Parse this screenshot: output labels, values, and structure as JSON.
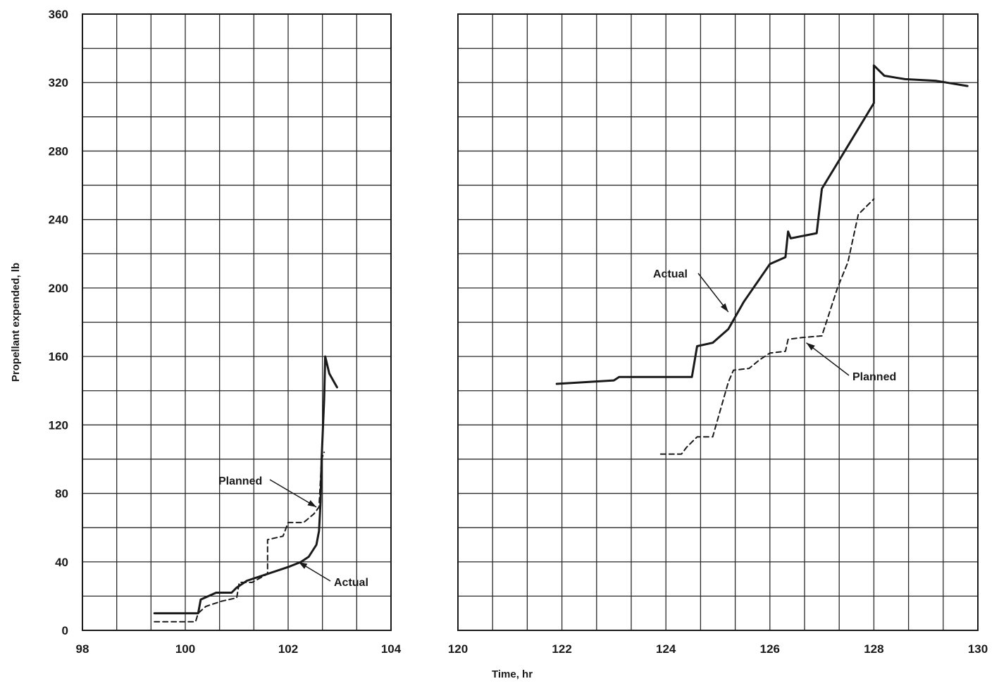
{
  "chart_data": [
    {
      "type": "line",
      "panel": "left",
      "xlim": [
        98,
        104
      ],
      "ylim": [
        0,
        360
      ],
      "x_ticks": [
        "98",
        "100",
        "102",
        "104"
      ],
      "y_ticks": [
        "0",
        "40",
        "80",
        "120",
        "160",
        "200",
        "240",
        "280",
        "320",
        "360"
      ],
      "grid": true,
      "ylabel": "Propellant expended, lb",
      "series": [
        {
          "name": "Actual",
          "style": "solid",
          "points": [
            [
              99.4,
              10
            ],
            [
              100.25,
              10
            ],
            [
              100.3,
              18
            ],
            [
              100.6,
              22
            ],
            [
              100.9,
              22
            ],
            [
              101.0,
              25
            ],
            [
              101.2,
              29
            ],
            [
              101.6,
              33
            ],
            [
              102.0,
              37
            ],
            [
              102.25,
              40
            ],
            [
              102.4,
              43
            ],
            [
              102.55,
              50
            ],
            [
              102.6,
              58
            ],
            [
              102.63,
              75
            ],
            [
              102.65,
              100
            ],
            [
              102.7,
              135
            ],
            [
              102.72,
              160
            ],
            [
              102.8,
              150
            ],
            [
              102.95,
              142
            ]
          ]
        },
        {
          "name": "Planned",
          "style": "dashed",
          "points": [
            [
              99.4,
              5
            ],
            [
              100.2,
              5
            ],
            [
              100.25,
              10
            ],
            [
              100.4,
              14
            ],
            [
              100.7,
              17
            ],
            [
              101.0,
              19
            ],
            [
              101.05,
              28
            ],
            [
              101.3,
              28
            ],
            [
              101.6,
              33
            ],
            [
              101.6,
              53
            ],
            [
              101.9,
              55
            ],
            [
              102.0,
              63
            ],
            [
              102.3,
              63
            ],
            [
              102.5,
              68
            ],
            [
              102.6,
              72
            ],
            [
              102.65,
              100
            ],
            [
              102.7,
              104
            ]
          ]
        }
      ],
      "annotations": [
        {
          "text": "Planned",
          "target": [
            102.55,
            72
          ]
        },
        {
          "text": "Actual",
          "target": [
            102.2,
            40
          ]
        }
      ]
    },
    {
      "type": "line",
      "panel": "right",
      "xlim": [
        120,
        130
      ],
      "ylim": [
        0,
        360
      ],
      "x_ticks": [
        "120",
        "122",
        "124",
        "126",
        "128",
        "130"
      ],
      "xlabel": "Time, hr",
      "grid": true,
      "series": [
        {
          "name": "Actual",
          "style": "solid",
          "points": [
            [
              121.9,
              144
            ],
            [
              123.0,
              146
            ],
            [
              123.1,
              148
            ],
            [
              124.5,
              148
            ],
            [
              124.6,
              166
            ],
            [
              124.9,
              168
            ],
            [
              125.2,
              176
            ],
            [
              125.5,
              192
            ],
            [
              126.0,
              214
            ],
            [
              126.3,
              218
            ],
            [
              126.35,
              233
            ],
            [
              126.4,
              229
            ],
            [
              126.9,
              232
            ],
            [
              127.0,
              258
            ],
            [
              127.5,
              283
            ],
            [
              128.0,
              308
            ],
            [
              128.0,
              330
            ],
            [
              128.2,
              324
            ],
            [
              128.6,
              322
            ],
            [
              129.2,
              321
            ],
            [
              129.8,
              318
            ]
          ]
        },
        {
          "name": "Planned",
          "style": "dashed",
          "points": [
            [
              123.9,
              103
            ],
            [
              124.3,
              103
            ],
            [
              124.4,
              107
            ],
            [
              124.5,
              110
            ],
            [
              124.6,
              113
            ],
            [
              124.9,
              113
            ],
            [
              125.2,
              145
            ],
            [
              125.3,
              152
            ],
            [
              125.6,
              153
            ],
            [
              125.8,
              158
            ],
            [
              126.0,
              162
            ],
            [
              126.3,
              163
            ],
            [
              126.35,
              170
            ],
            [
              126.6,
              171
            ],
            [
              127.0,
              172
            ],
            [
              127.3,
              200
            ],
            [
              127.5,
              215
            ],
            [
              127.7,
              243
            ],
            [
              128.0,
              252
            ]
          ]
        }
      ],
      "annotations": [
        {
          "text": "Actual",
          "target": [
            125.2,
            186
          ]
        },
        {
          "text": "Planned",
          "target": [
            126.7,
            168
          ]
        }
      ]
    }
  ]
}
